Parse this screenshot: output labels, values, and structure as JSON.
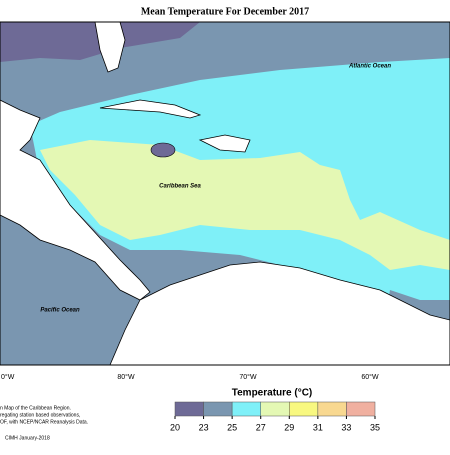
{
  "title": "Mean Temperature For December 2017",
  "map": {
    "labels": [
      "Atlantic Ocean",
      "Caribbean Sea",
      "Pacific Ocean"
    ],
    "longitudes": [
      "0°W",
      "80°W",
      "70°W",
      "60°W"
    ]
  },
  "legend": {
    "title": "Temperature (°C)",
    "ticks": [
      20,
      23,
      25,
      27,
      29,
      31,
      33,
      35
    ],
    "colors": [
      "#6e6a96",
      "#7a96b0",
      "#7ff0f8",
      "#e4f8b4",
      "#f8f880",
      "#f8d890",
      "#f0b0a0"
    ]
  },
  "notes": [
    "n Map of the Caribbean Region.",
    "regating station based observations,",
    "OF, with NCEP/NCAR Reanalysis Data.",
    "CIMH January-2018"
  ]
}
